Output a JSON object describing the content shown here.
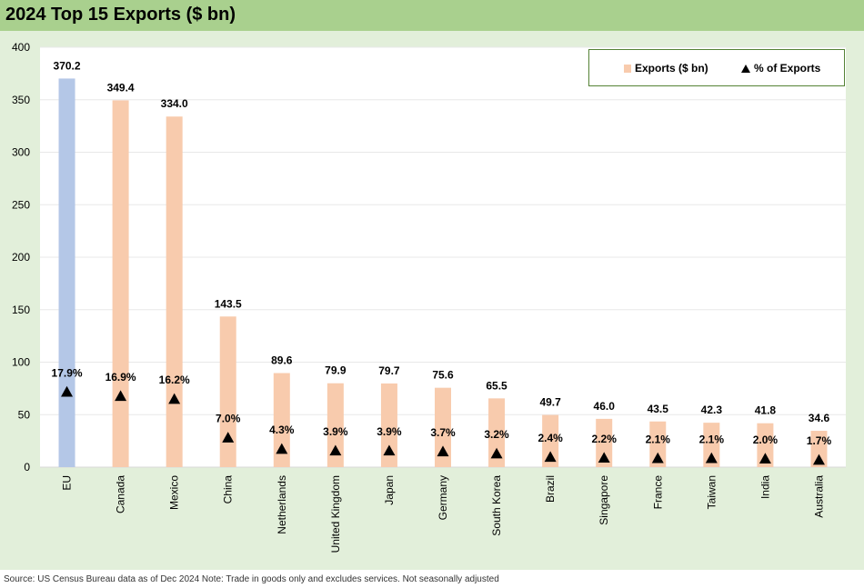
{
  "title": "2024 Top 15 Exports ($ bn)",
  "footer": "Source: US Census Bureau data as of Dec 2024 Note: Trade in goods only and excludes services. Not seasonally adjusted",
  "legend": {
    "exports_label": "Exports ($ bn)",
    "pct_label": "% of Exports"
  },
  "colors": {
    "eu_bar": "#b4c7e7",
    "bar": "#f8cbad",
    "marker": "#000000",
    "title_bg": "#a9d08e",
    "chart_bg": "#e2efda"
  },
  "chart_data": {
    "type": "bar",
    "title": "2024 Top 15 Exports ($ bn)",
    "categories": [
      "EU",
      "Canada",
      "Mexico",
      "China",
      "Netherlands",
      "United Kingdom",
      "Japan",
      "Germany",
      "South Korea",
      "Brazil",
      "Singapore",
      "France",
      "Taiwan",
      "India",
      "Australia"
    ],
    "series": [
      {
        "name": "Exports ($ bn)",
        "type": "bar",
        "values": [
          370.2,
          349.4,
          334.0,
          143.5,
          89.6,
          79.9,
          79.7,
          75.6,
          65.5,
          49.7,
          46.0,
          43.5,
          42.3,
          41.8,
          34.6
        ],
        "labels": [
          "370.2",
          "349.4",
          "334.0",
          "143.5",
          "89.6",
          "79.9",
          "79.7",
          "75.6",
          "65.5",
          "49.7",
          "46.0",
          "43.5",
          "42.3",
          "41.8",
          "34.6"
        ]
      },
      {
        "name": "% of Exports",
        "type": "scatter",
        "marker": "triangle",
        "values": [
          17.9,
          16.9,
          16.2,
          7.0,
          4.3,
          3.9,
          3.9,
          3.7,
          3.2,
          2.4,
          2.2,
          2.1,
          2.1,
          2.0,
          1.7
        ],
        "labels": [
          "17.9%",
          "16.9%",
          "16.2%",
          "7.0%",
          "4.3%",
          "3.9%",
          "3.9%",
          "3.7%",
          "3.2%",
          "2.4%",
          "2.2%",
          "2.1%",
          "2.1%",
          "2.0%",
          "1.7%"
        ]
      }
    ],
    "y_ticks": [
      "0",
      "50",
      "100",
      "150",
      "200",
      "250",
      "300",
      "350",
      "400"
    ],
    "ylim": [
      0,
      400
    ],
    "grid": true,
    "legend_position": "top-right"
  }
}
